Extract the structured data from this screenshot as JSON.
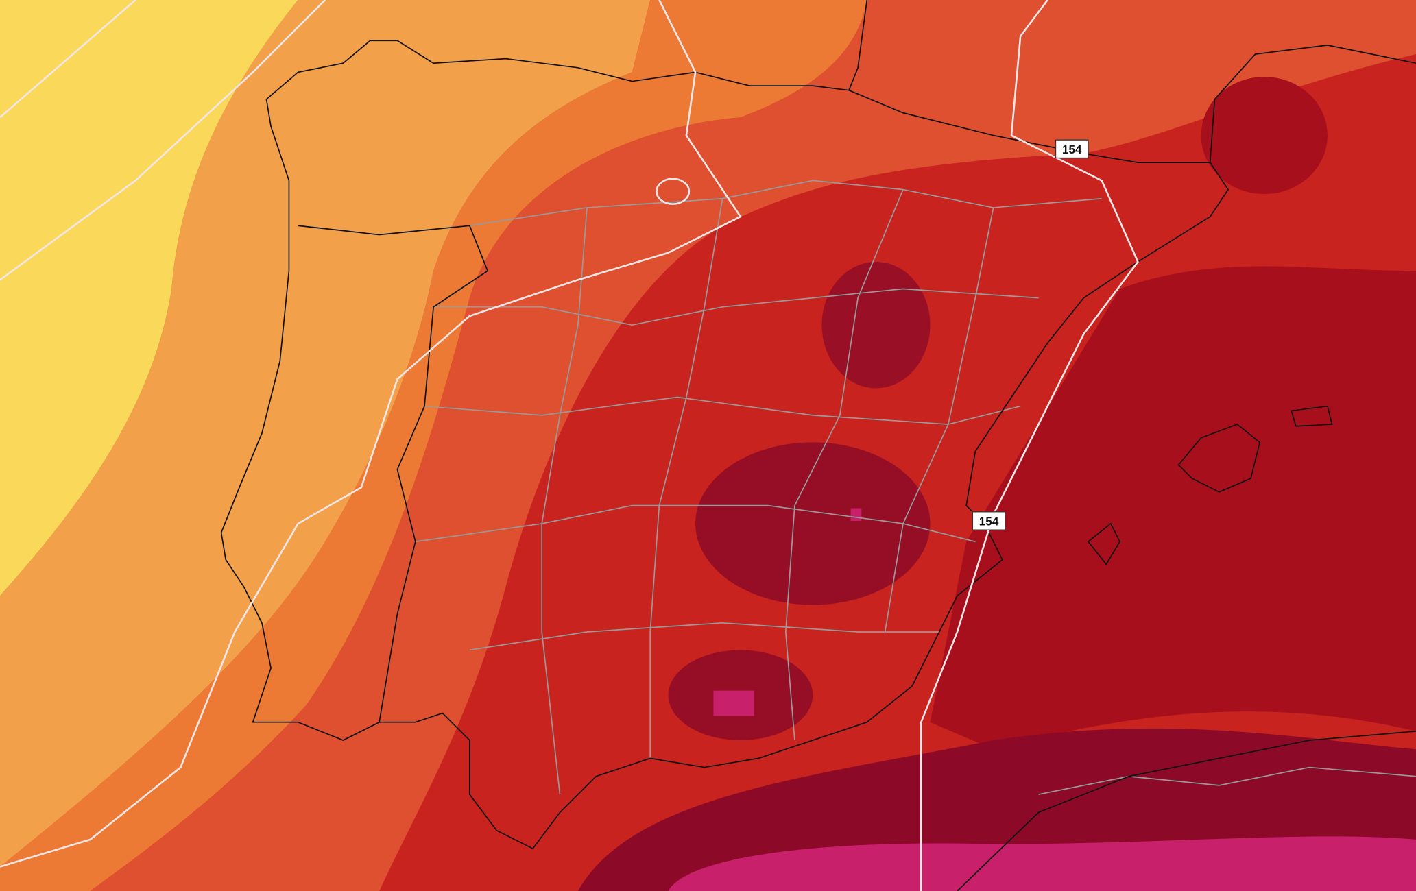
{
  "map": {
    "contour_labels": [
      "154",
      "154"
    ]
  }
}
